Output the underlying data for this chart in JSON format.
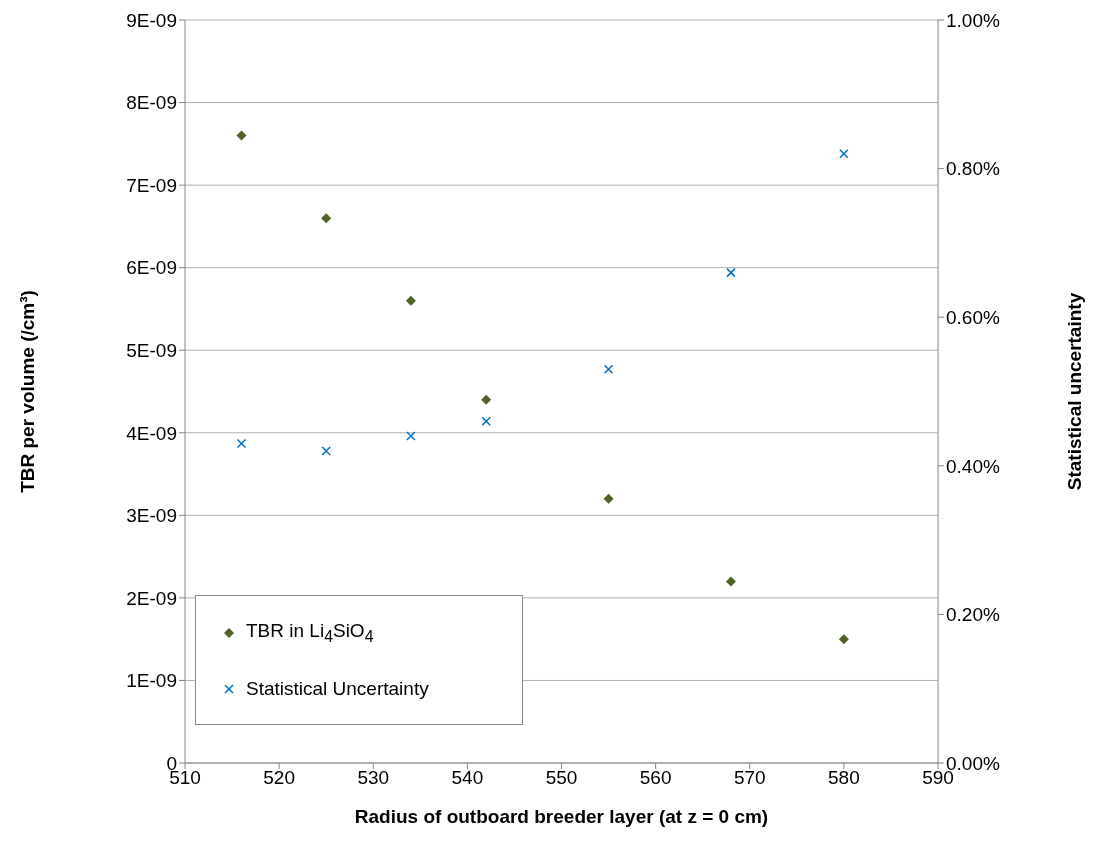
{
  "chart_data": {
    "type": "scatter",
    "xlabel": "Radius of outboard breeder layer (at z = 0 cm)",
    "ylabel": "TBR per volume (/cm³)",
    "y2label": "Statistical uncertainty",
    "x": [
      516,
      525,
      534,
      542,
      555,
      568,
      580
    ],
    "series": [
      {
        "name": "TBR in Li$_{4}$SiO$_{4}$",
        "color": "#4f6228",
        "marker": "diamond",
        "values": [
          7.6e-09,
          6.6e-09,
          5.6e-09,
          4.4e-09,
          3.2e-09,
          2.2e-09,
          1.5e-09
        ]
      },
      {
        "name": "Statistical Uncertainty",
        "color": "#0070c0",
        "marker": "cross",
        "axis": "y2",
        "values": [
          0.43,
          0.42,
          0.44,
          0.46,
          0.53,
          0.66,
          0.82
        ]
      }
    ],
    "xlim": [
      510,
      590
    ],
    "xticks": [
      510,
      520,
      530,
      540,
      550,
      560,
      570,
      580,
      590
    ],
    "ylim": [
      0,
      9e-09
    ],
    "yticks": [
      0,
      {
        "value": 1e-09,
        "label": "1E-09"
      },
      {
        "value": 2e-09,
        "label": "2E-09"
      },
      {
        "value": 3e-09,
        "label": "3E-09"
      },
      {
        "value": 4e-09,
        "label": "4E-09"
      },
      {
        "value": 5e-09,
        "label": "5E-09"
      },
      {
        "value": 6e-09,
        "label": "6E-09"
      },
      {
        "value": 7e-09,
        "label": "7E-09"
      },
      {
        "value": 8e-09,
        "label": "8E-09"
      },
      {
        "value": 9e-09,
        "label": "9E-09"
      }
    ],
    "y2lim": [
      0,
      1
    ],
    "y2ticks": [
      {
        "value": 0,
        "label": "0.00%"
      },
      {
        "value": 0.2,
        "label": "0.20%"
      },
      {
        "value": 0.4,
        "label": "0.40%"
      },
      {
        "value": 0.6,
        "label": "0.60%"
      },
      {
        "value": 0.8,
        "label": "0.80%"
      },
      {
        "value": 1,
        "label": "1.00%"
      }
    ],
    "grid": "y",
    "legend": "bottom left"
  }
}
